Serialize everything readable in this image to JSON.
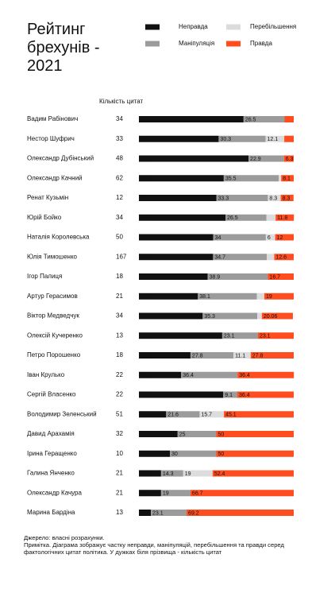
{
  "chart_data": {
    "type": "stacked-barh",
    "title": "Рейтинг брехунів - 2021",
    "count_label": "Кількість цитат",
    "categories": [
      "Вадим Рабінович",
      "Нестор Шуфрич",
      "Олександр Дубінський",
      "Олександр Качний",
      "Ренат Кузьмін",
      "Юрій Бойко",
      "Наталія Королевська",
      "Юлія Тимошенко",
      "Ігор Палиця",
      "Артур Герасимов",
      "Віктор Медведчук",
      "Олексій Кучеренко",
      "Петро Порошенко",
      "Іван Крулько",
      "Сергій Власенко",
      "Володимир Зеленський",
      "Давид Арахамія",
      "Ірина Геращенко",
      "Галина Янченко",
      "Олександр Качура",
      "Марина Бардіна"
    ],
    "quote_counts": [
      34,
      33,
      48,
      62,
      12,
      34,
      50,
      167,
      18,
      21,
      34,
      13,
      18,
      22,
      22,
      51,
      32,
      10,
      21,
      21,
      13
    ],
    "xlim": [
      0,
      100
    ],
    "legend": "top-right",
    "series": [
      {
        "name": "Неправда",
        "color": "#111111",
        "values": [
          67.6,
          51.5,
          70.8,
          54.8,
          50,
          55.9,
          48,
          47.9,
          44.4,
          38.1,
          41.2,
          53.8,
          33.3,
          27.3,
          54.5,
          17.6,
          25,
          20,
          14.3,
          14.3,
          7.7
        ]
      },
      {
        "name": "Маніпуляція",
        "color": "#9b9b9b",
        "values": [
          26.5,
          30.3,
          22.9,
          35.5,
          33.3,
          26.5,
          34,
          34.7,
          38.9,
          38.1,
          35.3,
          23.1,
          27.8,
          36.4,
          9.1,
          21.6,
          25,
          30,
          14.3,
          19,
          23.1
        ]
      },
      {
        "name": "Перебільшення",
        "color": "#dcdcdc",
        "values": [
          0,
          12.1,
          0,
          1.6,
          8.3,
          5.9,
          6,
          4.8,
          0,
          4.8,
          2.9,
          0,
          11.1,
          0,
          0,
          15.7,
          0,
          0,
          19,
          0,
          0
        ],
        "value_labels": [
          null,
          "12.1",
          null,
          null,
          "8.3",
          null,
          "6",
          null,
          null,
          null,
          null,
          null,
          "11.1",
          null,
          null,
          "15.7",
          null,
          null,
          "19",
          null,
          null
        ]
      },
      {
        "name": "Правда",
        "color": "#ff4d1f",
        "values": [
          5.9,
          6.1,
          6.3,
          8.1,
          8.3,
          11.8,
          12,
          12.6,
          16.7,
          19,
          20.06,
          23.1,
          27.8,
          36.4,
          36.4,
          45.1,
          50,
          50,
          52.4,
          66.7,
          69.2
        ],
        "value_labels": [
          null,
          null,
          "6.3",
          "8.1",
          "8.3",
          "11.8",
          "12",
          "12.6",
          "16.7",
          "19",
          "20.06",
          "23.1",
          "27.8",
          "36.4",
          "36.4",
          "45.1",
          "50",
          "50",
          "52.4",
          "66.7",
          "69.2"
        ]
      }
    ],
    "notes": [
      "Джерело: власні розрахунки.",
      "Примітка. Діаграма зображує частку неправди, маніпуляцій, перебільшення та правди серед фактологічних цитат політика. У дужках біля прізвища - кількість цитат"
    ]
  }
}
